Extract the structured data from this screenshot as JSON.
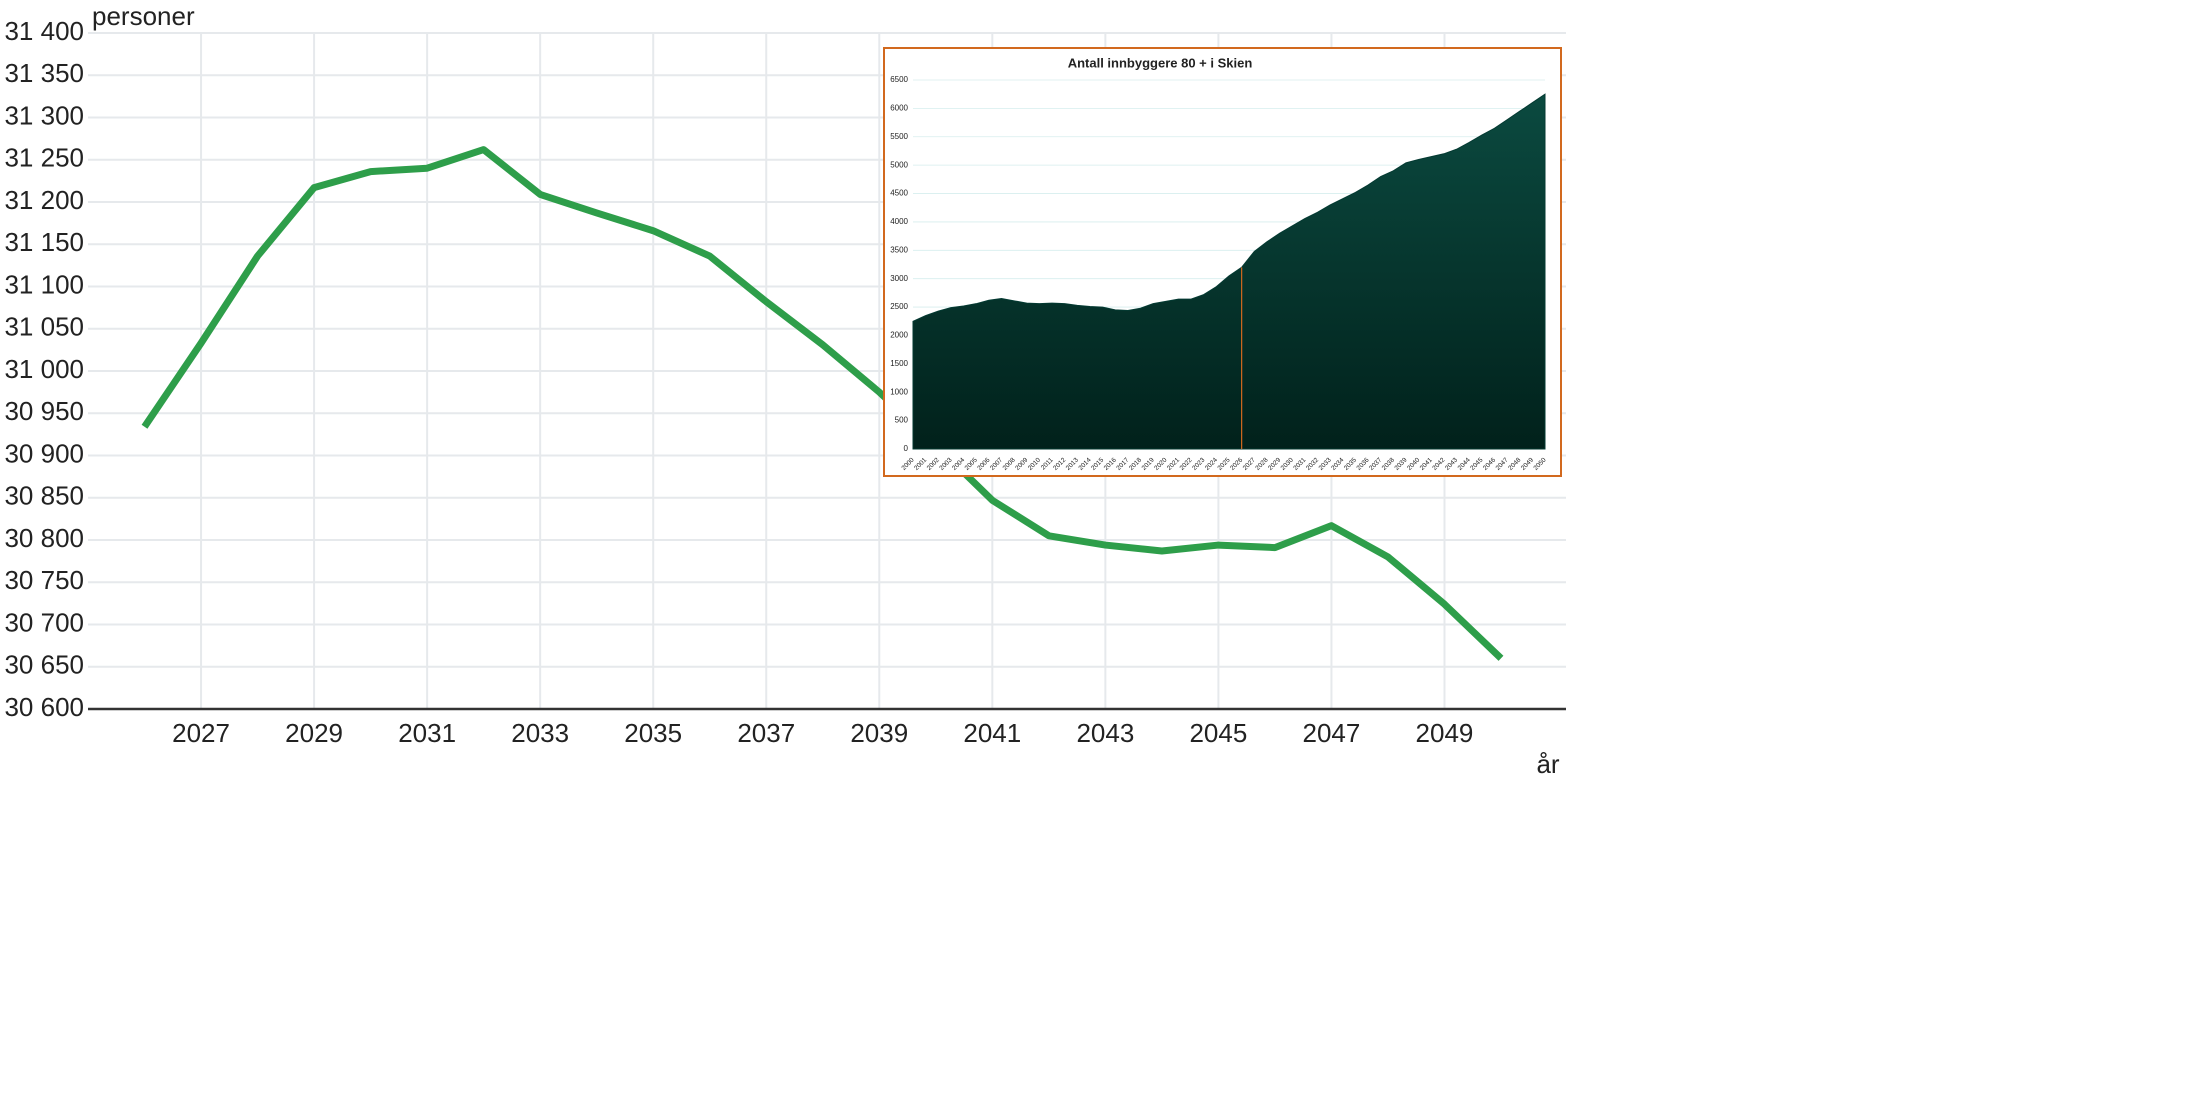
{
  "chart_data": [
    {
      "type": "line",
      "y_label": "personer",
      "x_label": "år",
      "x": [
        2026,
        2027,
        2028,
        2029,
        2030,
        2031,
        2032,
        2033,
        2034,
        2035,
        2036,
        2037,
        2038,
        2039,
        2040,
        2041,
        2042,
        2043,
        2044,
        2045,
        2046,
        2047,
        2048,
        2049,
        2050
      ],
      "values": [
        30934,
        31033,
        31136,
        31217,
        31236,
        31240,
        31262,
        31209,
        31187,
        31166,
        31136,
        31082,
        31031,
        30975,
        30912,
        30847,
        30805,
        30794,
        30787,
        30794,
        30791,
        30817,
        30780,
        30724,
        30660
      ],
      "color": "#2e9e4a",
      "xlim": [
        2025,
        2051.15
      ],
      "xticks": [
        2027,
        2029,
        2031,
        2033,
        2035,
        2037,
        2039,
        2041,
        2043,
        2045,
        2047,
        2049
      ],
      "ylim": [
        30600,
        31400
      ],
      "yticks": [
        {
          "value": 30600,
          "label": "30 600"
        },
        {
          "value": 30650,
          "label": "30 650"
        },
        {
          "value": 30700,
          "label": "30 700"
        },
        {
          "value": 30750,
          "label": "30 750"
        },
        {
          "value": 30800,
          "label": "30 800"
        },
        {
          "value": 30850,
          "label": "30 850"
        },
        {
          "value": 30900,
          "label": "30 900"
        },
        {
          "value": 30950,
          "label": "30 950"
        },
        {
          "value": 31000,
          "label": "31 000"
        },
        {
          "value": 31050,
          "label": "31 050"
        },
        {
          "value": 31100,
          "label": "31 100"
        },
        {
          "value": 31150,
          "label": "31 150"
        },
        {
          "value": 31200,
          "label": "31 200"
        },
        {
          "value": 31250,
          "label": "31 250"
        },
        {
          "value": 31300,
          "label": "31 300"
        },
        {
          "value": 31350,
          "label": "31 350"
        },
        {
          "value": 31400,
          "label": "31 400"
        }
      ],
      "grid": true
    },
    {
      "type": "area",
      "title": "Antall innbyggere 80 + i Skien",
      "x": [
        2000,
        2001,
        2002,
        2003,
        2004,
        2005,
        2006,
        2007,
        2008,
        2009,
        2010,
        2011,
        2012,
        2013,
        2014,
        2015,
        2016,
        2017,
        2018,
        2019,
        2020,
        2021,
        2022,
        2023,
        2024,
        2025,
        2026,
        2027,
        2028,
        2029,
        2030,
        2031,
        2032,
        2033,
        2034,
        2035,
        2036,
        2037,
        2038,
        2039,
        2040,
        2041,
        2042,
        2043,
        2044,
        2045,
        2046,
        2047,
        2048,
        2049,
        2050
      ],
      "values": [
        2250,
        2350,
        2430,
        2490,
        2520,
        2560,
        2620,
        2650,
        2610,
        2570,
        2560,
        2570,
        2560,
        2530,
        2510,
        2500,
        2450,
        2440,
        2480,
        2560,
        2600,
        2640,
        2640,
        2720,
        2860,
        3050,
        3200,
        3480,
        3650,
        3800,
        3930,
        4060,
        4170,
        4300,
        4410,
        4520,
        4650,
        4800,
        4900,
        5040,
        5100,
        5150,
        5200,
        5280,
        5400,
        5530,
        5650,
        5800,
        5950,
        6100,
        6250
      ],
      "color": "#043a32",
      "vline": 2026,
      "vline_color": "#d2691e",
      "xlim": [
        2000,
        2050
      ],
      "xticks": [
        2000,
        2001,
        2002,
        2003,
        2004,
        2005,
        2006,
        2007,
        2008,
        2009,
        2010,
        2011,
        2012,
        2013,
        2014,
        2015,
        2016,
        2017,
        2018,
        2019,
        2020,
        2021,
        2022,
        2023,
        2024,
        2025,
        2026,
        2027,
        2028,
        2029,
        2030,
        2031,
        2032,
        2033,
        2034,
        2035,
        2036,
        2037,
        2038,
        2039,
        2040,
        2041,
        2042,
        2043,
        2044,
        2045,
        2046,
        2047,
        2048,
        2049,
        2050
      ],
      "ylim": [
        0,
        6500
      ],
      "yticks": [
        0,
        500,
        1000,
        1500,
        2000,
        2500,
        3000,
        3500,
        4000,
        4500,
        5000,
        5500,
        6000,
        6500
      ],
      "grid": true
    }
  ]
}
